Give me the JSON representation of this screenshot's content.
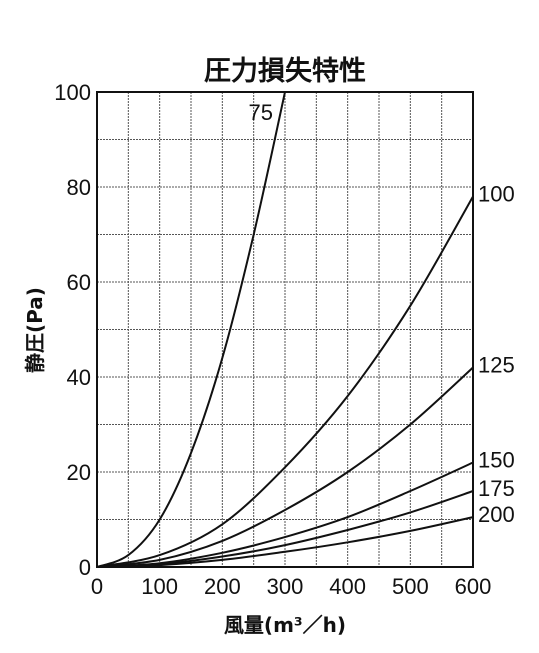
{
  "chart_data": {
    "type": "line",
    "title": "圧力損失特性",
    "xlabel": "風量(m³／h)",
    "ylabel": "静圧(Pa)",
    "xlim": [
      0,
      600
    ],
    "ylim": [
      0,
      100
    ],
    "x_ticks": [
      "0",
      "100",
      "200",
      "300",
      "400",
      "500",
      "600"
    ],
    "y_ticks": [
      "0",
      "20",
      "40",
      "60",
      "80",
      "100"
    ],
    "grid": true,
    "series": [
      {
        "name": "75",
        "x": [
          0,
          50,
          100,
          150,
          200,
          250,
          300
        ],
        "y": [
          0,
          2.5,
          10,
          24,
          44,
          70,
          100
        ]
      },
      {
        "name": "100",
        "x": [
          0,
          100,
          200,
          300,
          400,
          500,
          600
        ],
        "y": [
          0,
          2.5,
          9,
          21,
          36,
          55,
          78
        ]
      },
      {
        "name": "125",
        "x": [
          0,
          100,
          200,
          300,
          400,
          500,
          600
        ],
        "y": [
          0,
          1.5,
          5.5,
          12,
          20,
          30,
          42
        ]
      },
      {
        "name": "150",
        "x": [
          0,
          100,
          200,
          300,
          400,
          500,
          600
        ],
        "y": [
          0,
          0.8,
          3,
          6.3,
          10.5,
          16,
          22
        ]
      },
      {
        "name": "175",
        "x": [
          0,
          100,
          200,
          300,
          400,
          500,
          600
        ],
        "y": [
          0,
          0.6,
          2.2,
          4.6,
          7.8,
          11.5,
          16
        ]
      },
      {
        "name": "200",
        "x": [
          0,
          100,
          200,
          300,
          400,
          500,
          600
        ],
        "y": [
          0,
          0.4,
          1.5,
          3.2,
          5.2,
          7.6,
          10.5
        ]
      }
    ]
  }
}
